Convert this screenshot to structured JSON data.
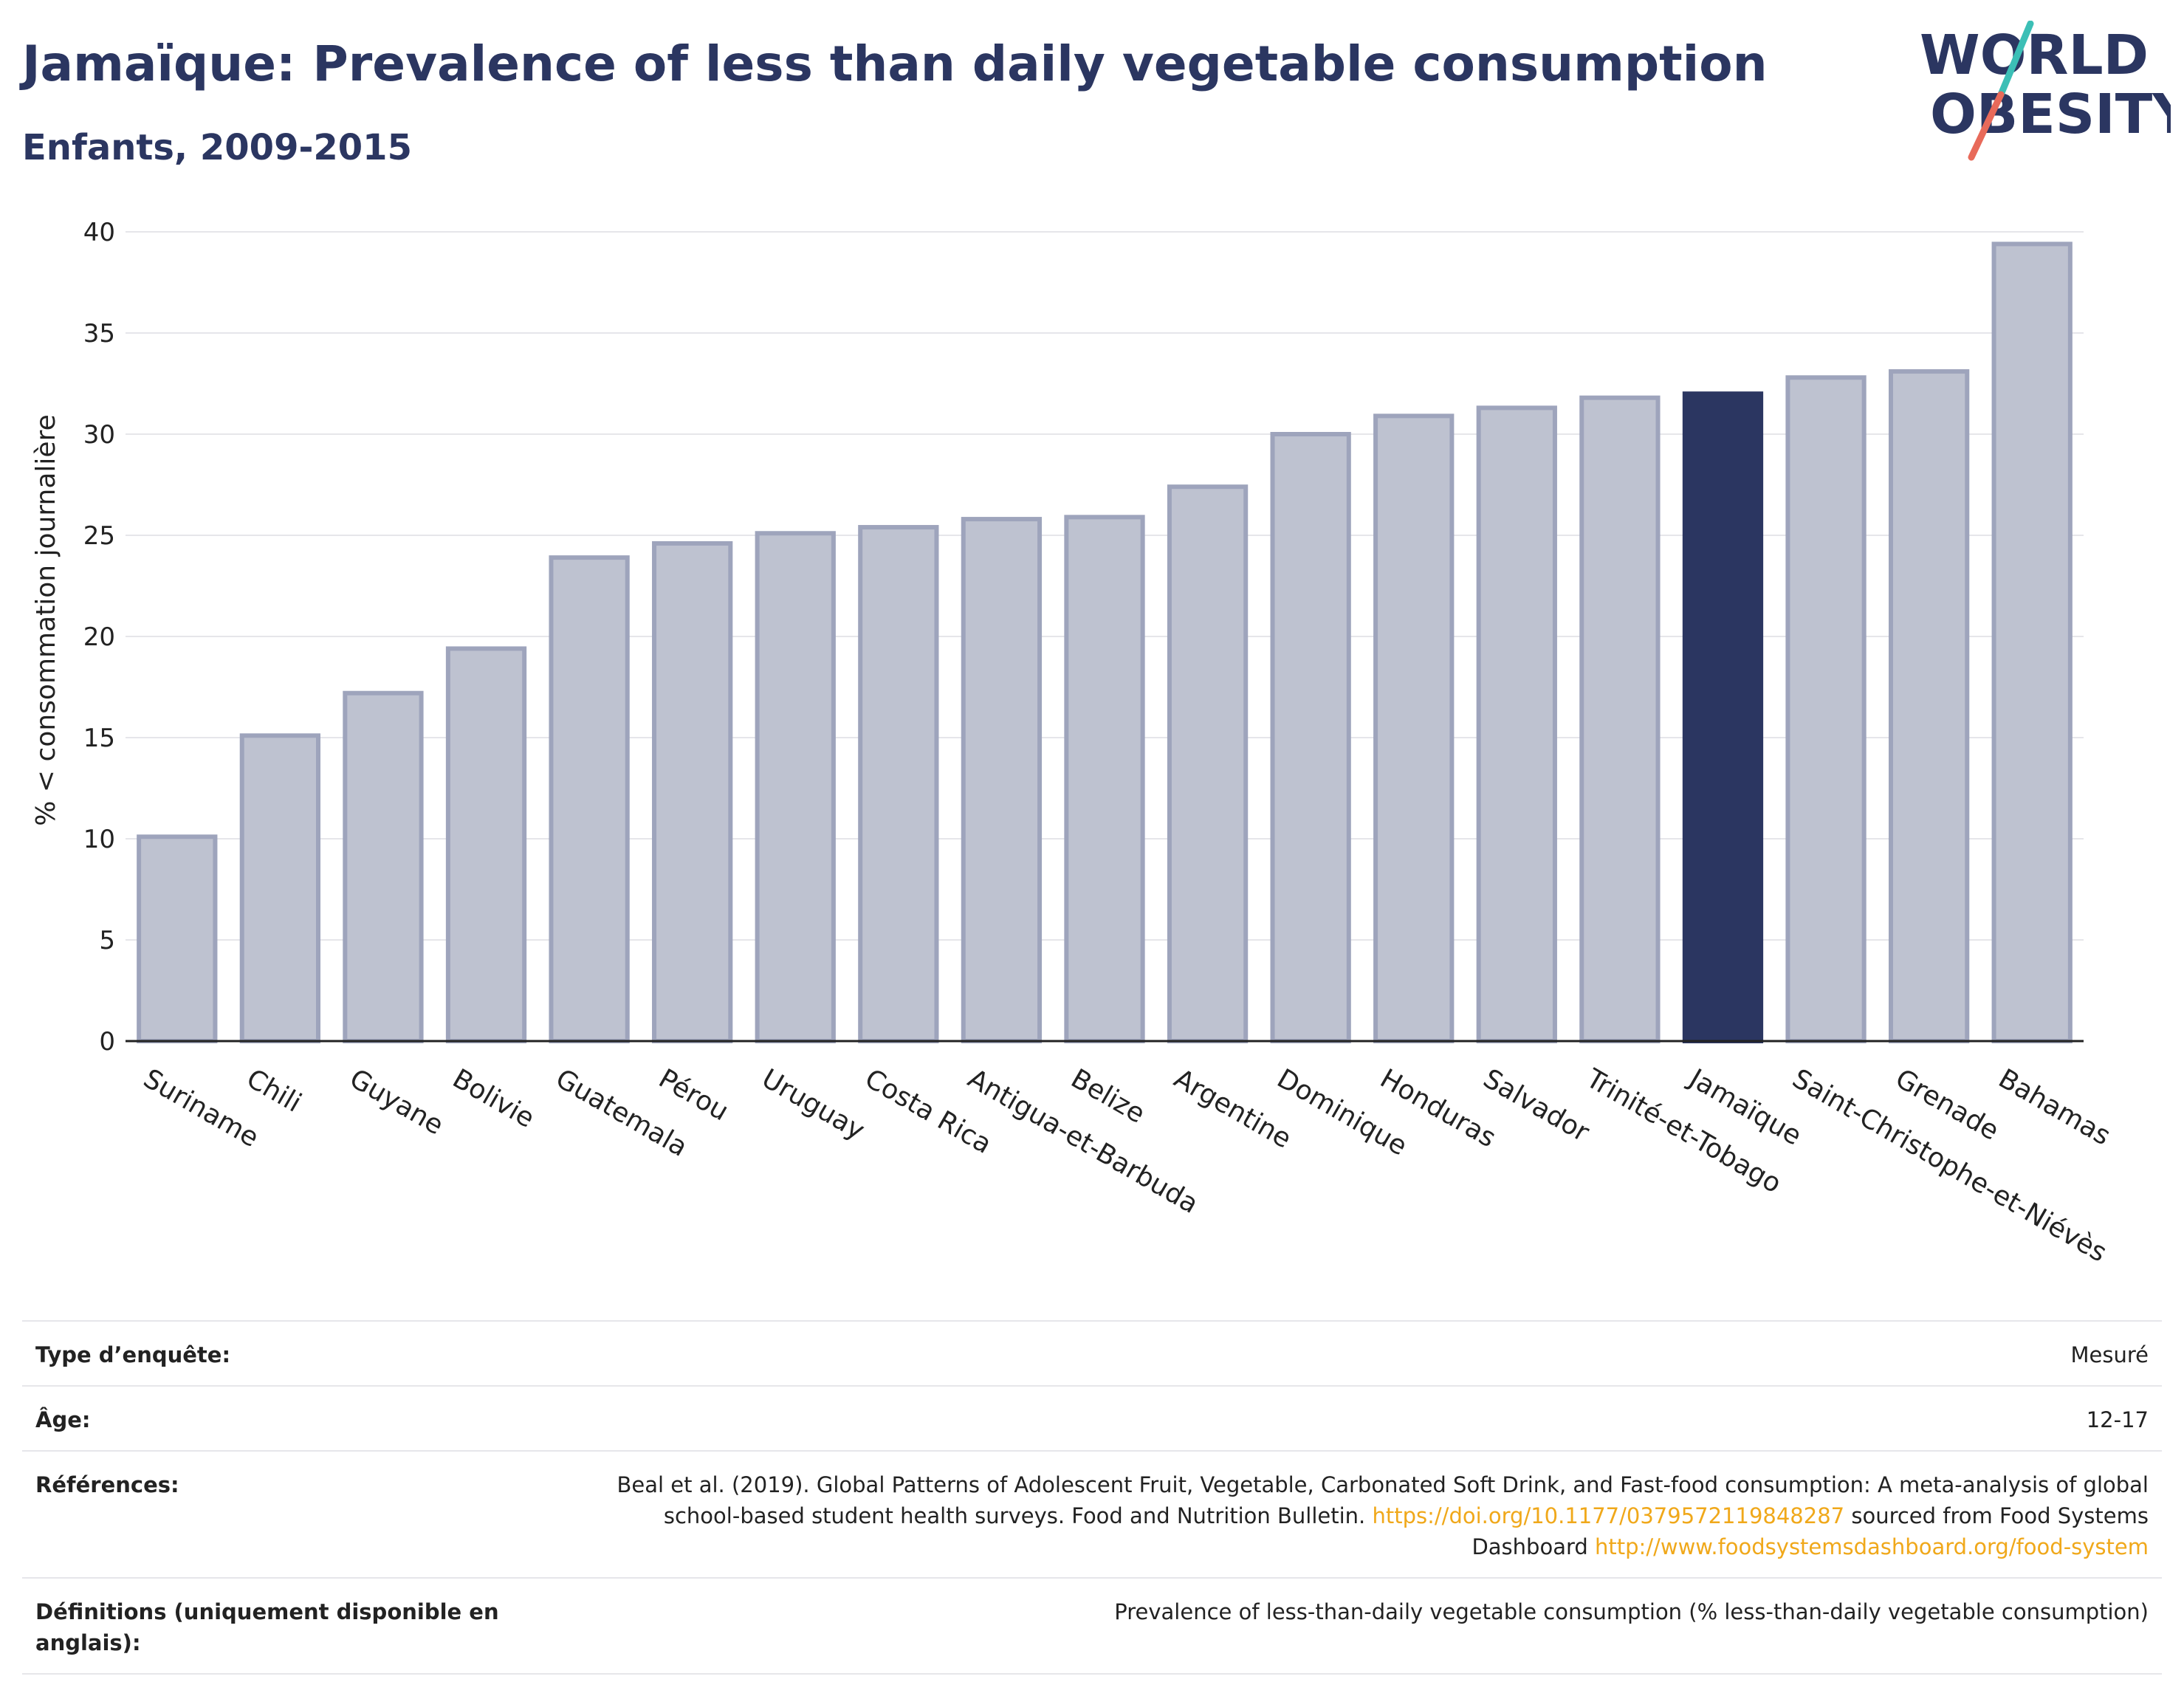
{
  "header": {
    "title": "Jamaïque: Prevalence of less than daily vegetable consumption",
    "subtitle": "Enfants, 2009-2015"
  },
  "logo": {
    "line1": "WORLD",
    "line2": "OBESITY",
    "colors": {
      "text": "#2b3661",
      "slash_top": "#3cbfb6",
      "slash_bottom": "#e86a5a"
    }
  },
  "colors": {
    "bar": "#bec2d0",
    "bar_border": "#9ea4bc",
    "highlight": "#2b3661",
    "grid": "#e6e6ea",
    "axis": "#222222"
  },
  "chart_data": {
    "type": "bar",
    "ylabel": "% < consommation journalière",
    "xlabel": "",
    "ylim": [
      0,
      40
    ],
    "yticks": [
      0,
      5,
      10,
      15,
      20,
      25,
      30,
      35,
      40
    ],
    "grid": true,
    "highlight": "Jamaïque",
    "categories": [
      "Suriname",
      "Chili",
      "Guyane",
      "Bolivie",
      "Guatemala",
      "Pérou",
      "Uruguay",
      "Costa Rica",
      "Antigua-et-Barbuda",
      "Belize",
      "Argentine",
      "Dominique",
      "Honduras",
      "Salvador",
      "Trinité-et-Tobago",
      "Jamaïque",
      "Saint-Christophe-et-Niévès",
      "Grenade",
      "Bahamas"
    ],
    "values": [
      10.1,
      15.1,
      17.2,
      19.4,
      23.9,
      24.6,
      25.1,
      25.4,
      25.8,
      25.9,
      27.4,
      30.0,
      30.9,
      31.3,
      31.8,
      32.0,
      32.8,
      33.1,
      39.4
    ]
  },
  "meta": {
    "survey_type_label": "Type d’enquête:",
    "survey_type_value": "Mesuré",
    "age_label": "Âge:",
    "age_value": "12-17",
    "references_label": "Références:",
    "references_text": "Beal et al. (2019). Global Patterns of Adolescent Fruit, Vegetable, Carbonated Soft Drink, and Fast-food consumption: A meta-analysis of global school-based student health surveys. Food and Nutrition Bulletin.",
    "references_link1": "https://doi.org/10.1177/0379572119848287",
    "references_mid": "sourced from Food Systems Dashboard",
    "references_link2": "http://www.foodsystemsdashboard.org/food-system",
    "definitions_label": "Définitions (uniquement disponible en anglais):",
    "definitions_value": "Prevalence of less-than-daily vegetable consumption (% less-than-daily vegetable consumption)"
  }
}
